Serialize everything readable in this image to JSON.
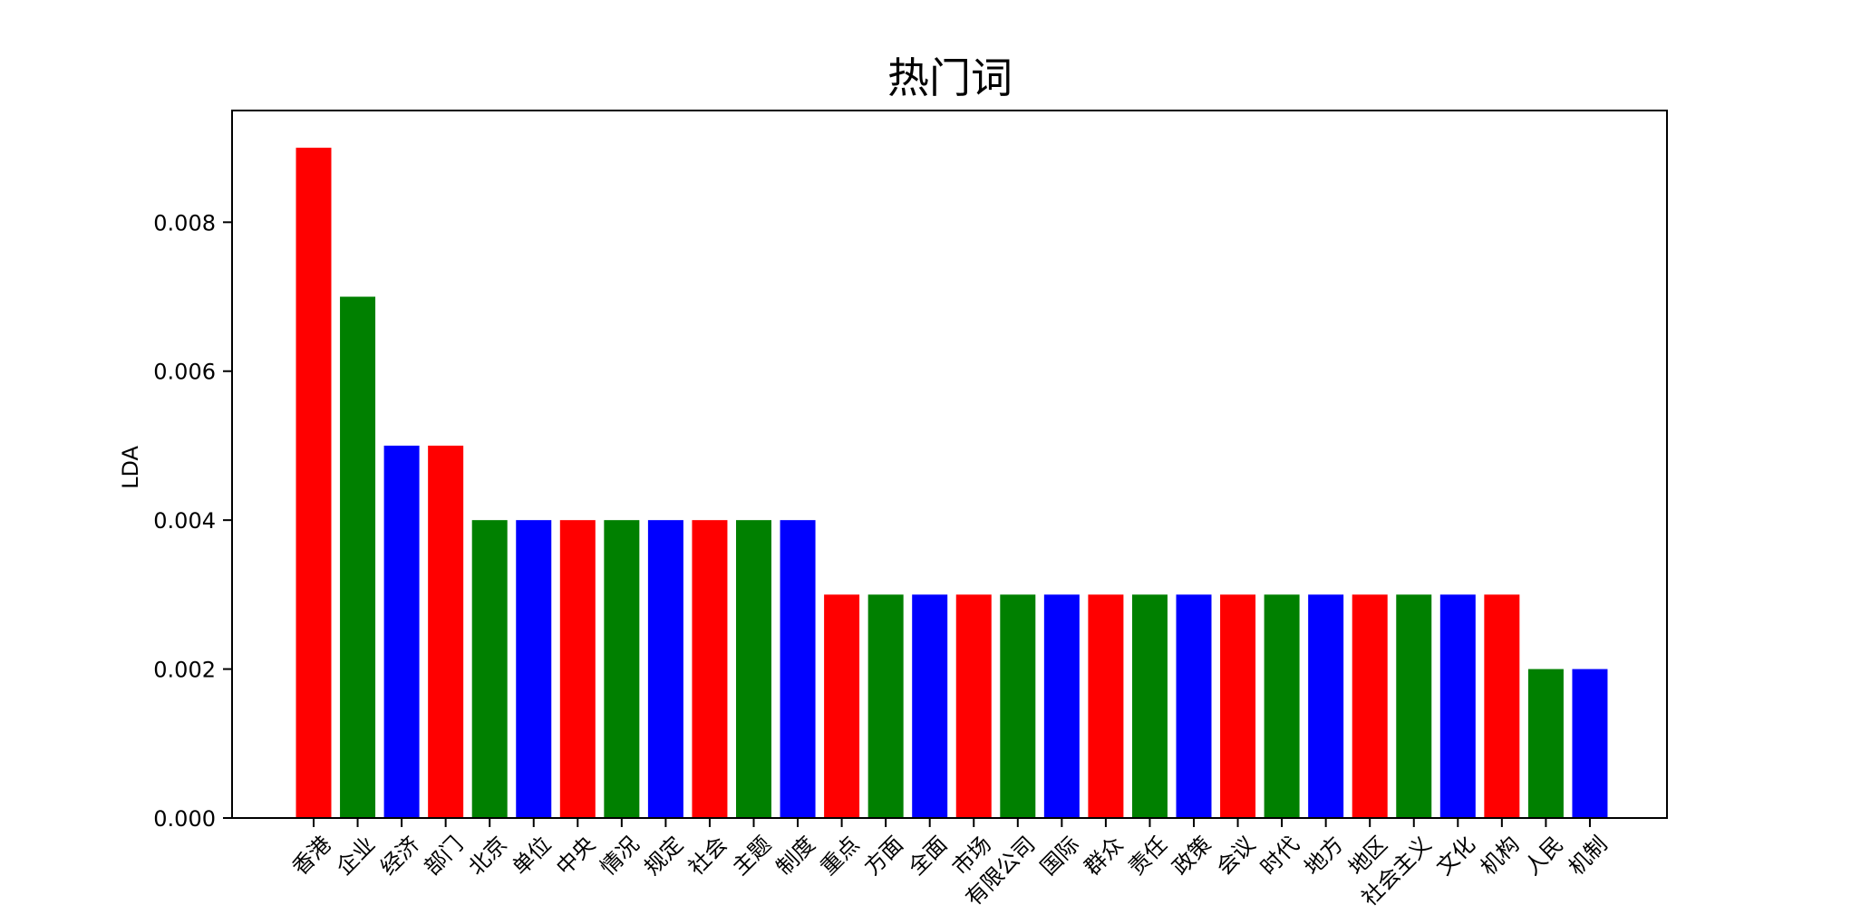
{
  "chart_data": {
    "type": "bar",
    "title": "热门词",
    "xlabel": "",
    "ylabel": "LDA",
    "ylim": [
      0,
      0.0095
    ],
    "yticks": [
      0.0,
      0.002,
      0.004,
      0.006,
      0.008
    ],
    "ytick_labels": [
      "0.000",
      "0.002",
      "0.004",
      "0.006",
      "0.008"
    ],
    "grid": false,
    "legend": null,
    "colors": [
      "#ff0000",
      "#008000",
      "#0000ff"
    ],
    "categories": [
      "香港",
      "企业",
      "经济",
      "部门",
      "北京",
      "单位",
      "中央",
      "情况",
      "规定",
      "社会",
      "主题",
      "制度",
      "重点",
      "方面",
      "全面",
      "市场",
      "有限公司",
      "国际",
      "群众",
      "责任",
      "政策",
      "会议",
      "时代",
      "地方",
      "地区",
      "社会主义",
      "文化",
      "机构",
      "人民",
      "机制"
    ],
    "values": [
      0.009,
      0.007,
      0.005,
      0.005,
      0.004,
      0.004,
      0.004,
      0.004,
      0.004,
      0.004,
      0.004,
      0.004,
      0.003,
      0.003,
      0.003,
      0.003,
      0.003,
      0.003,
      0.003,
      0.003,
      0.003,
      0.003,
      0.003,
      0.003,
      0.003,
      0.003,
      0.003,
      0.003,
      0.002,
      0.002
    ],
    "bar_colors": [
      "#ff0000",
      "#008000",
      "#0000ff",
      "#ff0000",
      "#008000",
      "#0000ff",
      "#ff0000",
      "#008000",
      "#0000ff",
      "#ff0000",
      "#008000",
      "#0000ff",
      "#ff0000",
      "#008000",
      "#0000ff",
      "#ff0000",
      "#008000",
      "#0000ff",
      "#ff0000",
      "#008000",
      "#0000ff",
      "#ff0000",
      "#008000",
      "#0000ff",
      "#ff0000",
      "#008000",
      "#0000ff",
      "#ff0000",
      "#008000",
      "#0000ff"
    ]
  }
}
